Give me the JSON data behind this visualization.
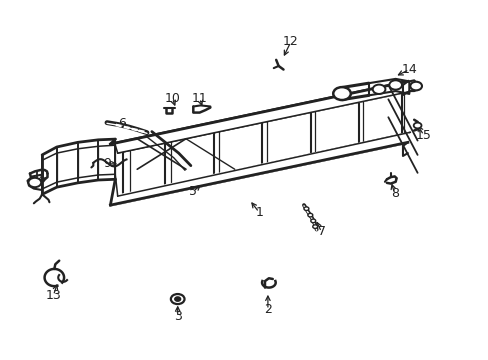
{
  "bg_color": "#ffffff",
  "frame_color": "#222222",
  "label_fontsize": 9,
  "labels": {
    "1": [
      0.53,
      0.41,
      0.51,
      0.445
    ],
    "2": [
      0.548,
      0.138,
      0.548,
      0.188
    ],
    "3": [
      0.363,
      0.118,
      0.363,
      0.158
    ],
    "4": [
      0.082,
      0.498,
      0.102,
      0.51
    ],
    "5": [
      0.395,
      0.468,
      0.415,
      0.492
    ],
    "6": [
      0.248,
      0.658,
      0.265,
      0.638
    ],
    "7": [
      0.658,
      0.355,
      0.645,
      0.392
    ],
    "8": [
      0.808,
      0.462,
      0.8,
      0.498
    ],
    "9": [
      0.218,
      0.545,
      0.245,
      0.545
    ],
    "10": [
      0.352,
      0.728,
      0.36,
      0.698
    ],
    "11": [
      0.408,
      0.728,
      0.415,
      0.698
    ],
    "12": [
      0.595,
      0.885,
      0.578,
      0.838
    ],
    "13": [
      0.108,
      0.178,
      0.118,
      0.218
    ],
    "14": [
      0.838,
      0.808,
      0.808,
      0.788
    ],
    "15": [
      0.868,
      0.625,
      0.852,
      0.658
    ]
  }
}
